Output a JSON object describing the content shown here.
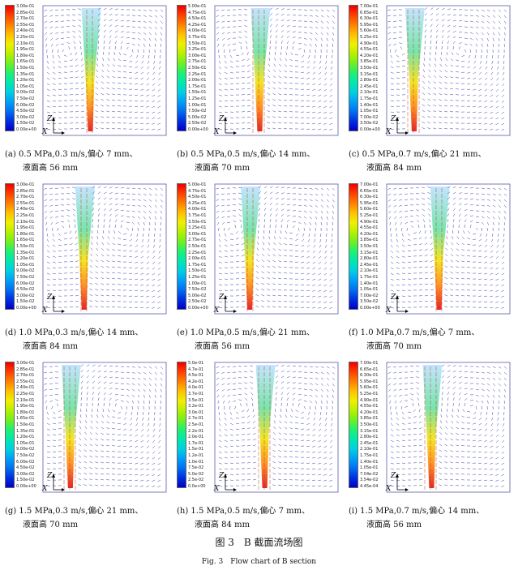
{
  "legend_colors": [
    "#0000c8",
    "#0030e0",
    "#0070f0",
    "#00a0f8",
    "#00d0e0",
    "#00e8b0",
    "#20f070",
    "#70f020",
    "#b8f000",
    "#f0f000",
    "#ffc000",
    "#ff8000",
    "#ff4000",
    "#f00000"
  ],
  "panels": [
    {
      "label": "(a) 0.5 MPa,0.3 m/s,偏心 7 mm、",
      "label2": "液面高 56 mm",
      "legend": [
        "3.00e-01",
        "2.85e-01",
        "2.70e-01",
        "2.55e-01",
        "2.40e-01",
        "2.25e-01",
        "2.10e-01",
        "1.95e-01",
        "1.80e-01",
        "1.65e-01",
        "1.50e-01",
        "1.35e-01",
        "1.20e-01",
        "1.05e-01",
        "9.00e-02",
        "7.50e-02",
        "6.00e-02",
        "4.50e-02",
        "3.00e-02",
        "1.50e-02",
        "0.00e+00"
      ],
      "jet_x": 0.38
    },
    {
      "label": "(b) 0.5 MPa,0.5 m/s,偏心 14 mm、",
      "label2": "液面高 70 mm",
      "legend": [
        "5.00e-01",
        "4.75e-01",
        "4.50e-01",
        "4.25e-01",
        "4.00e-01",
        "3.75e-01",
        "3.50e-01",
        "3.25e-01",
        "3.00e-01",
        "2.75e-01",
        "2.50e-01",
        "2.25e-01",
        "2.00e-01",
        "1.75e-01",
        "1.50e-01",
        "1.25e-01",
        "1.00e-01",
        "7.50e-02",
        "5.00e-02",
        "2.50e-02",
        "0.00e+00"
      ],
      "jet_x": 0.36
    },
    {
      "label": "(c) 0.5 MPa,0.7 m/s,偏心 21 mm、",
      "label2": "液面高 84 mm",
      "legend": [
        "7.00e-01",
        "6.65e-01",
        "6.30e-01",
        "5.95e-01",
        "5.60e-01",
        "5.25e-01",
        "4.90e-01",
        "4.55e-01",
        "4.20e-01",
        "3.85e-01",
        "3.50e-01",
        "3.15e-01",
        "2.80e-01",
        "2.45e-01",
        "2.10e-01",
        "1.75e-01",
        "1.40e-01",
        "1.05e-01",
        "7.00e-02",
        "3.50e-02",
        "0.00e+00"
      ],
      "jet_x": 0.22
    },
    {
      "label": "(d) 1.0 MPa,0.3 m/s,偏心 14 mm、",
      "label2": "液面高 84 mm",
      "legend": [
        "3.00e-01",
        "2.85e-01",
        "2.70e-01",
        "2.55e-01",
        "2.40e-01",
        "2.25e-01",
        "2.10e-01",
        "1.95e-01",
        "1.80e-01",
        "1.65e-01",
        "1.50e-01",
        "1.35e-01",
        "1.20e-01",
        "1.05e-01",
        "9.00e-02",
        "7.50e-02",
        "6.00e-02",
        "4.50e-02",
        "3.00e-02",
        "1.50e-02",
        "0.00e+00"
      ],
      "jet_x": 0.33
    },
    {
      "label": "(e) 1.0 MPa,0.5 m/s,偏心 21 mm、",
      "label2": "液面高 56 mm",
      "legend": [
        "5.00e-01",
        "4.75e-01",
        "4.50e-01",
        "4.25e-01",
        "4.00e-01",
        "3.75e-01",
        "3.50e-01",
        "3.25e-01",
        "3.00e-01",
        "2.75e-01",
        "2.50e-01",
        "2.25e-01",
        "2.00e-01",
        "1.75e-01",
        "1.50e-01",
        "1.25e-01",
        "1.00e-01",
        "7.50e-02",
        "5.00e-02",
        "2.50e-02",
        "0.00e+00"
      ],
      "jet_x": 0.28
    },
    {
      "label": "(f) 1.0 MPa,0.7 m/s,偏心 7 mm、",
      "label2": "液面高 70 mm",
      "legend": [
        "7.00e-01",
        "6.65e-01",
        "6.30e-01",
        "5.95e-01",
        "5.60e-01",
        "5.25e-01",
        "4.90e-01",
        "4.55e-01",
        "4.20e-01",
        "3.85e-01",
        "3.50e-01",
        "3.15e-01",
        "2.80e-01",
        "2.45e-01",
        "2.10e-01",
        "1.75e-01",
        "1.40e-01",
        "1.05e-01",
        "7.00e-02",
        "3.50e-02",
        "0.00e+00"
      ],
      "jet_x": 0.42
    },
    {
      "label": "(g) 1.5 MPa,0.3 m/s,偏心 21 mm、",
      "label2": "液面高 70 mm",
      "legend": [
        "3.00e-01",
        "2.85e-01",
        "2.70e-01",
        "2.55e-01",
        "2.40e-01",
        "2.25e-01",
        "2.10e-01",
        "1.95e-01",
        "1.80e-01",
        "1.65e-01",
        "1.50e-01",
        "1.35e-01",
        "1.20e-01",
        "1.05e-01",
        "9.00e-02",
        "7.50e-02",
        "6.00e-02",
        "4.50e-02",
        "3.00e-02",
        "1.50e-02",
        "0.00e+00"
      ],
      "jet_x": 0.22
    },
    {
      "label": "(h) 1.5 MPa,0.5 m/s,偏心 7 mm、",
      "label2": "液面高 84 mm",
      "legend": [
        "5.0e-01",
        "4.7e-01",
        "4.5e-01",
        "4.2e-01",
        "4.0e-01",
        "3.7e-01",
        "3.5e-01",
        "3.2e-01",
        "3.0e-01",
        "2.7e-01",
        "2.5e-01",
        "2.2e-01",
        "2.0e-01",
        "1.7e-01",
        "1.5e-01",
        "1.2e-01",
        "1.0e-01",
        "7.5e-02",
        "5.0e-02",
        "2.5e-02",
        "0.0e+00"
      ],
      "jet_x": 0.4
    },
    {
      "label": "(i) 1.5 MPa,0.7 m/s,偏心 14 mm、",
      "label2": "液面高 56 mm",
      "legend": [
        "7.00e-01",
        "6.65e-01",
        "6.30e-01",
        "5.95e-01",
        "5.60e-01",
        "5.25e-01",
        "4.90e-01",
        "4.55e-01",
        "4.20e-01",
        "3.85e-01",
        "3.50e-01",
        "3.15e-01",
        "2.80e-01",
        "2.45e-01",
        "2.10e-01",
        "1.75e-01",
        "1.40e-01",
        "1.05e-01",
        "7.04e-02",
        "3.54e-02",
        "4.45e-04"
      ],
      "jet_x": 0.36
    }
  ],
  "axis_z": "Z",
  "axis_x": "X",
  "figure_title": "图 3　B 截面流场图",
  "figure_subtitle": "Fig. 3　Flow chart of B section"
}
